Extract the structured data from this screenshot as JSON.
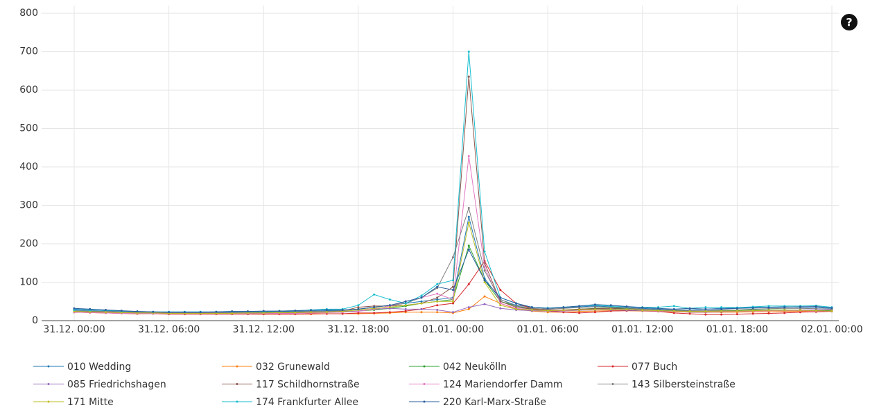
{
  "chart_data": {
    "type": "line",
    "categories": [
      "31.12. 00:00",
      null,
      null,
      null,
      null,
      null,
      "31.12. 06:00",
      null,
      null,
      null,
      null,
      null,
      "31.12. 12:00",
      null,
      null,
      null,
      null,
      null,
      "31.12. 18:00",
      null,
      null,
      null,
      null,
      null,
      "01.01. 00:00",
      null,
      null,
      null,
      null,
      null,
      "01.01. 06:00",
      null,
      null,
      null,
      null,
      null,
      "01.01. 12:00",
      null,
      null,
      null,
      null,
      null,
      "01.01. 18:00",
      null,
      null,
      null,
      null,
      null,
      "02.01. 00:00"
    ],
    "ylim": [
      0,
      820
    ],
    "yticks": [
      0,
      100,
      200,
      300,
      400,
      500,
      600,
      700,
      800
    ],
    "grid": true,
    "series": [
      {
        "name": "010 Wedding",
        "color": "#1f77b4",
        "values": [
          30,
          28,
          26,
          24,
          23,
          22,
          22,
          22,
          22,
          22,
          23,
          23,
          23,
          24,
          24,
          25,
          26,
          27,
          30,
          35,
          40,
          45,
          50,
          55,
          60,
          270,
          110,
          55,
          40,
          35,
          32,
          34,
          36,
          38,
          36,
          34,
          32,
          30,
          28,
          28,
          30,
          32,
          33,
          34,
          35,
          36,
          35,
          34,
          32
        ]
      },
      {
        "name": "032 Grunewald",
        "color": "#ff7f0e",
        "values": [
          22,
          21,
          20,
          19,
          18,
          18,
          17,
          17,
          17,
          17,
          17,
          17,
          17,
          17,
          17,
          17,
          18,
          18,
          18,
          19,
          20,
          22,
          22,
          22,
          20,
          30,
          63,
          45,
          30,
          25,
          22,
          22,
          24,
          25,
          26,
          26,
          25,
          24,
          23,
          22,
          22,
          22,
          22,
          23,
          23,
          24,
          24,
          25,
          25
        ]
      },
      {
        "name": "042 Neukölln",
        "color": "#2ca02c",
        "values": [
          25,
          24,
          23,
          22,
          21,
          20,
          20,
          20,
          20,
          20,
          20,
          20,
          21,
          21,
          21,
          22,
          22,
          23,
          25,
          28,
          32,
          38,
          45,
          50,
          55,
          195,
          105,
          50,
          38,
          30,
          28,
          27,
          30,
          32,
          33,
          32,
          30,
          28,
          26,
          25,
          25,
          26,
          27,
          28,
          28,
          28,
          27,
          27,
          26
        ]
      },
      {
        "name": "077 Buch",
        "color": "#d62728",
        "values": [
          22,
          21,
          20,
          19,
          18,
          18,
          17,
          17,
          17,
          17,
          17,
          17,
          17,
          17,
          17,
          18,
          18,
          18,
          20,
          20,
          22,
          25,
          30,
          40,
          45,
          95,
          155,
          80,
          45,
          32,
          25,
          22,
          20,
          22,
          25,
          26,
          26,
          24,
          20,
          18,
          16,
          16,
          17,
          18,
          19,
          20,
          22,
          23,
          24
        ]
      },
      {
        "name": "085 Friedrichshagen",
        "color": "#9467bd",
        "values": [
          28,
          26,
          24,
          22,
          21,
          20,
          20,
          20,
          20,
          20,
          20,
          20,
          20,
          20,
          21,
          21,
          22,
          22,
          25,
          30,
          32,
          30,
          30,
          28,
          22,
          35,
          43,
          32,
          28,
          26,
          25,
          25,
          27,
          28,
          28,
          27,
          26,
          25,
          24,
          23,
          23,
          24,
          25,
          26,
          27,
          27,
          28,
          28,
          28
        ]
      },
      {
        "name": "117 Schildhornstraße",
        "color": "#8c564b",
        "values": [
          24,
          23,
          22,
          21,
          20,
          20,
          19,
          19,
          19,
          19,
          19,
          19,
          20,
          20,
          20,
          21,
          22,
          25,
          35,
          38,
          38,
          40,
          45,
          60,
          88,
          635,
          150,
          50,
          35,
          30,
          28,
          28,
          30,
          31,
          32,
          30,
          28,
          26,
          24,
          22,
          22,
          23,
          24,
          25,
          26,
          27,
          27,
          26,
          25
        ]
      },
      {
        "name": "124 Mariendorfer Damm",
        "color": "#e377c2",
        "values": [
          22,
          21,
          20,
          19,
          19,
          18,
          18,
          18,
          18,
          18,
          18,
          18,
          19,
          19,
          19,
          20,
          21,
          22,
          24,
          30,
          38,
          50,
          60,
          70,
          55,
          428,
          140,
          45,
          32,
          28,
          26,
          26,
          28,
          29,
          30,
          29,
          27,
          25,
          24,
          23,
          23,
          24,
          24,
          25,
          26,
          26,
          26,
          25,
          25
        ]
      },
      {
        "name": "143 Silbersteinstraße",
        "color": "#7f7f7f",
        "values": [
          26,
          25,
          24,
          23,
          22,
          21,
          21,
          21,
          21,
          21,
          21,
          21,
          22,
          22,
          23,
          24,
          24,
          26,
          30,
          35,
          40,
          45,
          60,
          85,
          165,
          293,
          130,
          55,
          38,
          32,
          30,
          32,
          34,
          36,
          35,
          33,
          30,
          28,
          27,
          26,
          26,
          27,
          28,
          30,
          31,
          32,
          32,
          31,
          30
        ]
      },
      {
        "name": "171 Mitte",
        "color": "#bcbd22",
        "values": [
          24,
          23,
          22,
          21,
          20,
          20,
          19,
          19,
          19,
          19,
          19,
          20,
          20,
          21,
          21,
          22,
          22,
          24,
          28,
          32,
          35,
          40,
          45,
          50,
          50,
          255,
          100,
          40,
          30,
          28,
          26,
          27,
          28,
          29,
          30,
          29,
          27,
          26,
          25,
          24,
          24,
          25,
          25,
          26,
          27,
          27,
          27,
          26,
          25
        ]
      },
      {
        "name": "174 Frankfurter Allee",
        "color": "#17becf",
        "values": [
          28,
          27,
          27,
          25,
          24,
          23,
          23,
          23,
          23,
          23,
          24,
          24,
          24,
          25,
          26,
          28,
          30,
          30,
          40,
          68,
          55,
          45,
          65,
          95,
          105,
          700,
          180,
          60,
          45,
          35,
          33,
          35,
          38,
          40,
          38,
          36,
          35,
          35,
          38,
          32,
          35,
          35,
          34,
          36,
          38,
          38,
          38,
          39,
          35
        ]
      },
      {
        "name": "220 Karl-Marx-Straße",
        "color": "#2a5f9e",
        "values": [
          32,
          30,
          28,
          26,
          24,
          23,
          22,
          22,
          22,
          23,
          24,
          24,
          25,
          25,
          26,
          27,
          28,
          28,
          30,
          35,
          40,
          50,
          60,
          88,
          80,
          185,
          105,
          60,
          45,
          35,
          32,
          35,
          38,
          42,
          40,
          37,
          34,
          32,
          30,
          32,
          30,
          30,
          32,
          33,
          34,
          35,
          36,
          37,
          33
        ]
      }
    ]
  }
}
